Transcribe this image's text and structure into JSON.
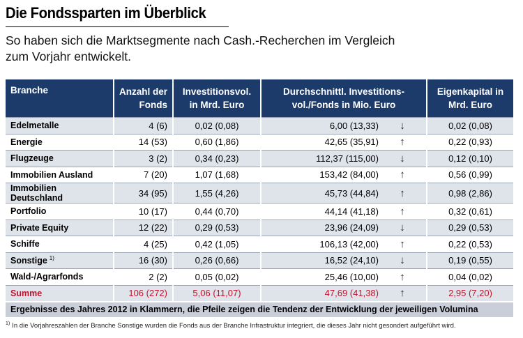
{
  "title": "Die Fondssparten im Überblick",
  "subtitle": "So haben sich die Marktsegmente nach Cash.-Recherchen im Vergleich zum Vorjahr entwickelt.",
  "colors": {
    "header_bg": "#1d3b6a",
    "row_alt": "#dfe3ea",
    "sum_text": "#c0142c",
    "note_bg": "#c9ced8"
  },
  "headers": {
    "branche": "Branche",
    "anzahl": "Anzahl der Fonds",
    "invest": "Investitionsvol. in Mrd. Euro",
    "durch": "Durchschnittl. Investitions-vol./Fonds in Mio. Euro",
    "eigen": "Eigenkapital in Mrd. Euro"
  },
  "rows": [
    {
      "branche": "Edelmetalle",
      "anzahl": "4 (6)",
      "invest": "0,02 (0,08)",
      "durch": "6,00 (13,33)",
      "trend": "down",
      "eigen": "0,02 (0,08)"
    },
    {
      "branche": "Energie",
      "anzahl": "14 (53)",
      "invest": "0,60 (1,86)",
      "durch": "42,65 (35,91)",
      "trend": "up",
      "eigen": "0,22 (0,93)"
    },
    {
      "branche": "Flugzeuge",
      "anzahl": "3 (2)",
      "invest": "0,34 (0,23)",
      "durch": "112,37 (115,00)",
      "trend": "down",
      "eigen": "0,12 (0,10)"
    },
    {
      "branche": "Immobilien Ausland",
      "anzahl": "7 (20)",
      "invest": "1,07 (1,68)",
      "durch": "153,42 (84,00)",
      "trend": "up",
      "eigen": "0,56 (0,99)"
    },
    {
      "branche": "Immobilien Deutschland",
      "anzahl": "34 (95)",
      "invest": "1,55 (4,26)",
      "durch": "45,73 (44,84)",
      "trend": "up",
      "eigen": "0,98 (2,86)"
    },
    {
      "branche": "Portfolio",
      "anzahl": "10 (17)",
      "invest": "0,44 (0,70)",
      "durch": "44,14 (41,18)",
      "trend": "up",
      "eigen": "0,32 (0,61)"
    },
    {
      "branche": "Private Equity",
      "anzahl": "12 (22)",
      "invest": "0,29 (0,53)",
      "durch": "23,96 (24,09)",
      "trend": "down",
      "eigen": "0,29 (0,53)"
    },
    {
      "branche": "Schiffe",
      "anzahl": "4 (25)",
      "invest": "0,42 (1,05)",
      "durch": "106,13 (42,00)",
      "trend": "up",
      "eigen": "0,22 (0,53)"
    },
    {
      "branche": "Sonstige",
      "footnote_mark": "1)",
      "anzahl": "16 (30)",
      "invest": "0,26 (0,66)",
      "durch": "16,52 (24,10)",
      "trend": "down",
      "eigen": "0,19 (0,55)"
    },
    {
      "branche": "Wald-/Agrarfonds",
      "anzahl": "2 (2)",
      "invest": "0,05 (0,02)",
      "durch": "25,46 (10,00)",
      "trend": "up",
      "eigen": "0,04 (0,02)"
    }
  ],
  "sum": {
    "branche": "Summe",
    "anzahl": "106 (272)",
    "invest": "5,06 (11,07)",
    "durch": "47,69 (41,38)",
    "trend": "up",
    "eigen": "2,95 (7,20)"
  },
  "note": "Ergebnisse des Jahres 2012 in Klammern, die Pfeile zeigen die Tendenz der Entwicklung der jeweiligen Volumina",
  "footnote": {
    "mark": "1)",
    "text": "In die Vorjahreszahlen der Branche Sonstige wurden die Fonds aus der Branche Infrastruktur integriert, die dieses Jahr nicht gesondert aufgeführt wird."
  }
}
